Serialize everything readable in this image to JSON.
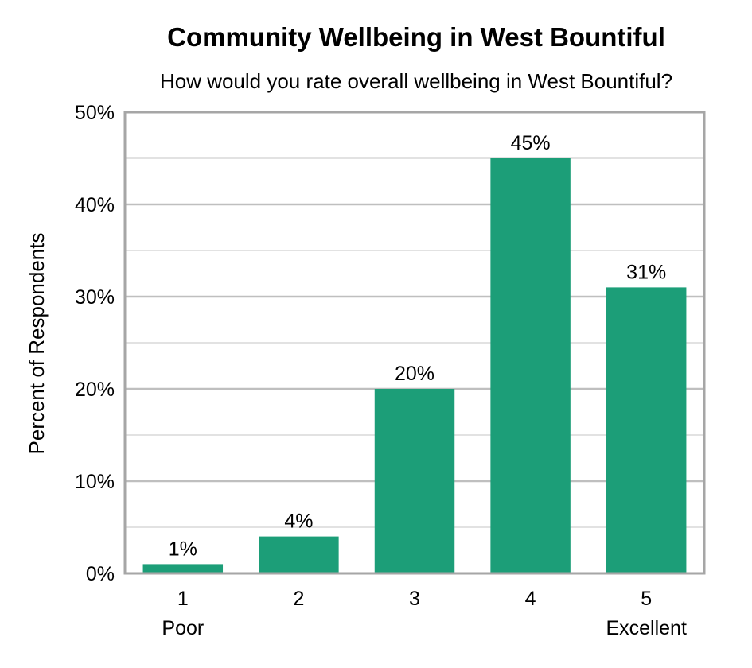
{
  "chart_data": {
    "type": "bar",
    "title": "Community Wellbeing in West Bountiful",
    "subtitle": "How would you rate overall wellbeing in West Bountiful?",
    "ylabel": "Percent of Respondents",
    "xlabel": "",
    "categories": [
      "1",
      "2",
      "3",
      "4",
      "5"
    ],
    "category_sublabels": [
      "Poor",
      "",
      "",
      "",
      "Excellent"
    ],
    "values": [
      1,
      4,
      20,
      45,
      31
    ],
    "data_labels": [
      "1%",
      "4%",
      "20%",
      "45%",
      "31%"
    ],
    "ylim": [
      0,
      50
    ],
    "y_ticks": [
      0,
      10,
      20,
      30,
      40,
      50
    ],
    "y_tick_labels": [
      "0%",
      "10%",
      "20%",
      "30%",
      "40%",
      "50%"
    ],
    "minor_gridlines": [
      5,
      15,
      25,
      35,
      45
    ],
    "grid": true,
    "bar_color": "#1c9e78",
    "gridline_color": "#bfbfbf",
    "frame_color": "#a6a6a6"
  }
}
